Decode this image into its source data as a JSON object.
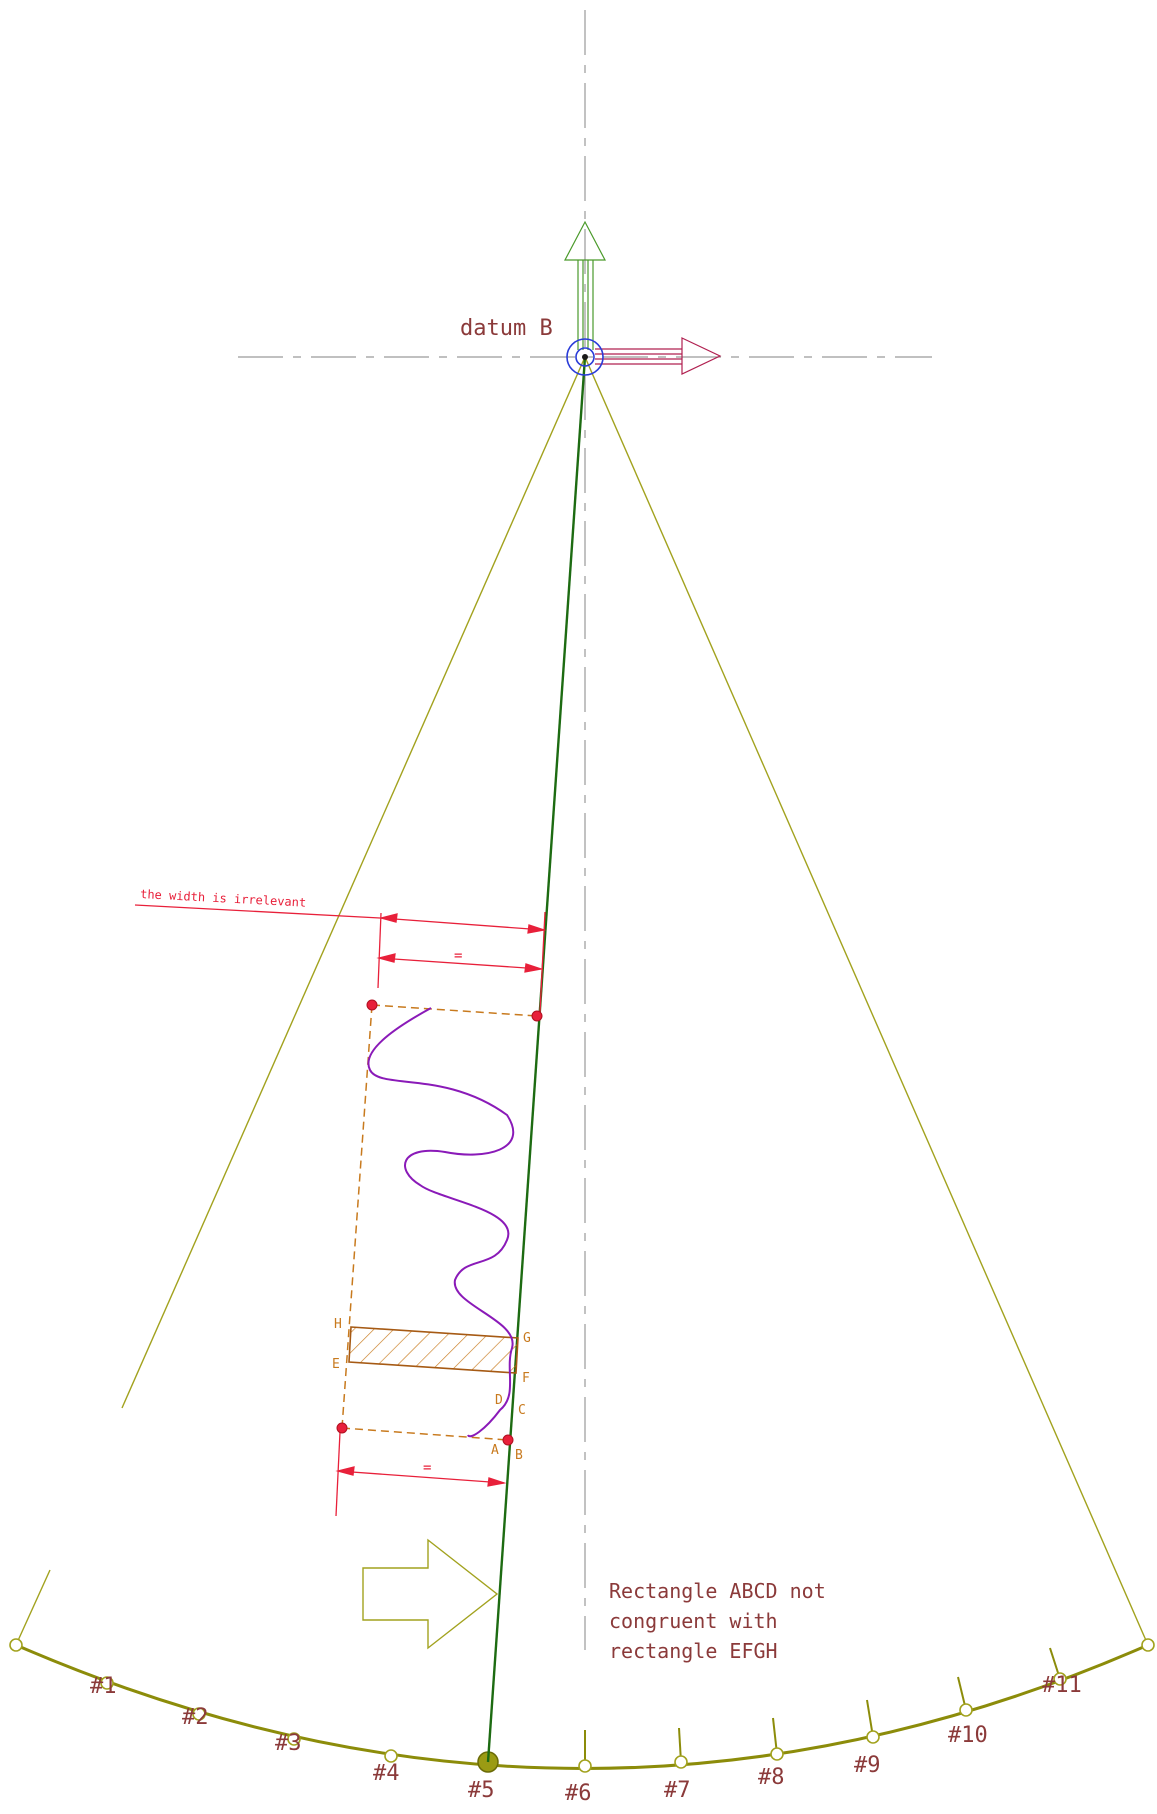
{
  "colors": {
    "axis": "#9a9a9a",
    "cone": "#a2a21e",
    "arc": "#8c8c0a",
    "green_line": "#1d6b12",
    "green_arrow": "#4a9a2a",
    "red": "#e8203a",
    "maroon": "#b02050",
    "blue": "#2a3cd8",
    "orange": "#c87a1e",
    "purple": "#8a1ab8",
    "text": "#8b3a3a",
    "fill_marker": "#9b9b14"
  },
  "datum": {
    "label": "datum B"
  },
  "annotation": {
    "width_note": "the width is irrelevant",
    "equal_top": "=",
    "equal_bottom": "="
  },
  "points": {
    "A": "A",
    "B": "B",
    "C": "C",
    "D": "D",
    "E": "E",
    "F": "F",
    "G": "G",
    "H": "H"
  },
  "note": {
    "line1": "Rectangle ABCD not",
    "line2": "congruent with",
    "line3": "rectangle EFGH"
  },
  "stations": [
    "#1",
    "#2",
    "#3",
    "#4",
    "#5",
    "#6",
    "#7",
    "#8",
    "#9",
    "#10",
    "#11"
  ]
}
